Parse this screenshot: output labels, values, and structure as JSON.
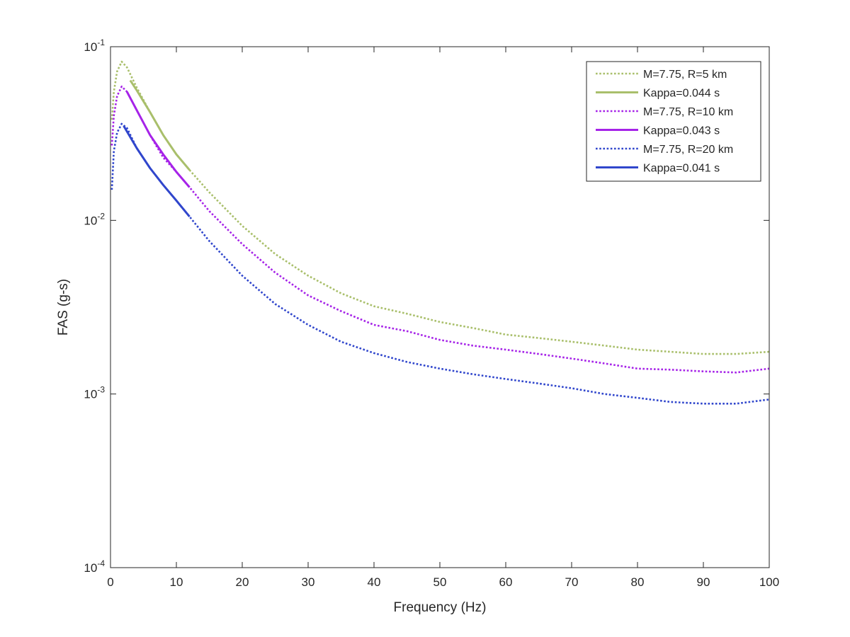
{
  "chart_data": {
    "type": "line",
    "title": "",
    "xlabel": "Frequency (Hz)",
    "ylabel": "FAS (g-s)",
    "xlim": [
      0,
      100
    ],
    "ylim": [
      0.0001,
      0.1
    ],
    "yscale": "log",
    "grid": false,
    "legend_position": "top-right",
    "x_ticks": [
      0,
      10,
      20,
      30,
      40,
      50,
      60,
      70,
      80,
      90,
      100
    ],
    "x_tick_labels": [
      "0",
      "10",
      "20",
      "30",
      "40",
      "50",
      "60",
      "70",
      "80",
      "90",
      "100"
    ],
    "y_ticks": [
      0.0001,
      0.001,
      0.01,
      0.1
    ],
    "y_tick_labels": [
      {
        "base": "10",
        "exp": "-4"
      },
      {
        "base": "10",
        "exp": "-3"
      },
      {
        "base": "10",
        "exp": "-2"
      },
      {
        "base": "10",
        "exp": "-1"
      }
    ],
    "series": [
      {
        "name": "M=7.75, R=5 km",
        "color": "#a9bf6b",
        "dash": "dotted",
        "x": [
          0.2,
          0.5,
          1.0,
          1.7,
          2.5,
          4,
          6,
          8,
          10,
          12,
          15,
          20,
          25,
          30,
          35,
          40,
          45,
          50,
          55,
          60,
          65,
          70,
          75,
          80,
          85,
          90,
          95,
          100
        ],
        "y": [
          0.038,
          0.055,
          0.072,
          0.082,
          0.076,
          0.058,
          0.042,
          0.031,
          0.024,
          0.0195,
          0.0145,
          0.0093,
          0.0064,
          0.0048,
          0.0038,
          0.0032,
          0.0029,
          0.0026,
          0.0024,
          0.0022,
          0.0021,
          0.002,
          0.0019,
          0.0018,
          0.00175,
          0.0017,
          0.0017,
          0.00175
        ]
      },
      {
        "name": "Kappa=0.044 s",
        "color": "#a9bf6b",
        "dash": "solid",
        "x": [
          3,
          4,
          6,
          8,
          10,
          12
        ],
        "y": [
          0.064,
          0.056,
          0.042,
          0.031,
          0.024,
          0.0195
        ]
      },
      {
        "name": "M=7.75, R=10 km",
        "color": "#a623e8",
        "dash": "dotted",
        "x": [
          0.2,
          0.5,
          1.0,
          1.7,
          2.5,
          4,
          6,
          8,
          10,
          12,
          15,
          20,
          25,
          30,
          35,
          40,
          45,
          50,
          55,
          60,
          65,
          70,
          75,
          80,
          85,
          90,
          95,
          100
        ],
        "y": [
          0.027,
          0.04,
          0.052,
          0.059,
          0.055,
          0.043,
          0.031,
          0.023,
          0.019,
          0.0155,
          0.0113,
          0.0073,
          0.005,
          0.0037,
          0.003,
          0.0025,
          0.0023,
          0.00205,
          0.0019,
          0.0018,
          0.0017,
          0.0016,
          0.0015,
          0.0014,
          0.00138,
          0.00135,
          0.00133,
          0.0014
        ]
      },
      {
        "name": "Kappa=0.043 s",
        "color": "#a623e8",
        "dash": "solid",
        "x": [
          2.5,
          4,
          6,
          8,
          10,
          12
        ],
        "y": [
          0.055,
          0.043,
          0.031,
          0.024,
          0.019,
          0.0155
        ]
      },
      {
        "name": "M=7.75, R=20 km",
        "color": "#3046cc",
        "dash": "dotted",
        "x": [
          0.2,
          0.5,
          1.0,
          1.7,
          2.5,
          4,
          6,
          8,
          10,
          12,
          15,
          20,
          25,
          30,
          35,
          40,
          45,
          50,
          55,
          60,
          65,
          70,
          75,
          80,
          85,
          90,
          95,
          100
        ],
        "y": [
          0.015,
          0.025,
          0.032,
          0.036,
          0.034,
          0.026,
          0.02,
          0.016,
          0.013,
          0.0105,
          0.0076,
          0.0048,
          0.0033,
          0.0025,
          0.002,
          0.00172,
          0.00153,
          0.0014,
          0.0013,
          0.00122,
          0.00115,
          0.00108,
          0.001,
          0.00095,
          0.0009,
          0.00088,
          0.00088,
          0.00093
        ]
      },
      {
        "name": "Kappa=0.041 s",
        "color": "#3046cc",
        "dash": "solid",
        "x": [
          2,
          4,
          6,
          8,
          10,
          12
        ],
        "y": [
          0.035,
          0.026,
          0.02,
          0.016,
          0.013,
          0.0105
        ]
      }
    ]
  }
}
